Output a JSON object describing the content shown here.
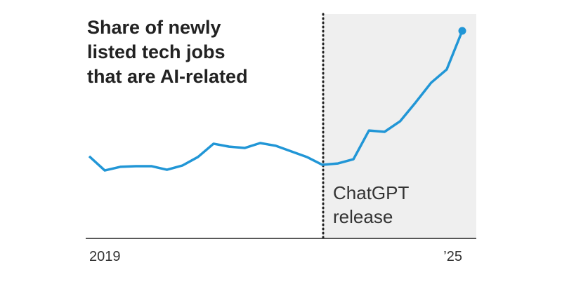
{
  "chart_data": {
    "type": "line",
    "title": [
      "Share of newly",
      "listed tech jobs",
      "that are AI-related"
    ],
    "categories": [
      "2019",
      null,
      null,
      null,
      null,
      null,
      null,
      null,
      null,
      null,
      null,
      null,
      null,
      null,
      null,
      null,
      null,
      null,
      null,
      null,
      null,
      null,
      null,
      null,
      "’25"
    ],
    "series": [
      {
        "color": "#2196d6",
        "values": [
          36.6,
          30.3,
          31.9,
          32.2,
          32.2,
          30.6,
          32.5,
          36.3,
          42.2,
          40.9,
          40.3,
          42.5,
          41.3,
          38.8,
          36.3,
          32.8,
          33.4,
          35.3,
          48.1,
          47.5,
          52.2,
          60.6,
          69.4,
          75.3,
          92.5
        ]
      }
    ],
    "ylim": [
      0,
      100
    ],
    "annotation": [
      "ChatGPT",
      "release"
    ]
  }
}
